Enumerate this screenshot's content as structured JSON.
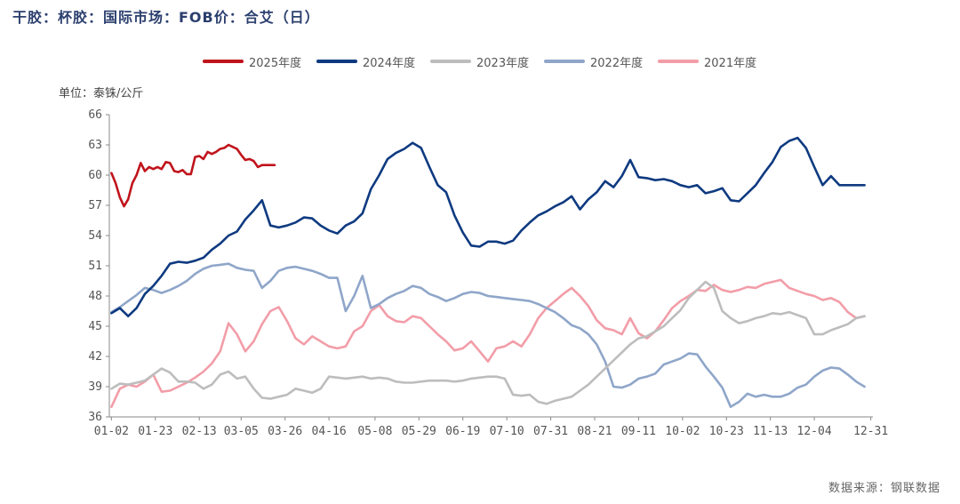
{
  "title": "干胶：杯胶：国际市场：FOB价：合艾（日）",
  "unit_label": "单位：泰铢/公斤",
  "source": "数据来源：钢联数据",
  "chart_data": {
    "type": "line",
    "ylim": [
      36,
      66
    ],
    "yticks": [
      36,
      39,
      42,
      45,
      48,
      51,
      54,
      57,
      60,
      63,
      66
    ],
    "xlim": [
      1,
      366
    ],
    "xticks": [
      {
        "day": 2,
        "label": "01-02"
      },
      {
        "day": 23,
        "label": "01-23"
      },
      {
        "day": 44,
        "label": "02-13"
      },
      {
        "day": 64,
        "label": "03-05"
      },
      {
        "day": 85,
        "label": "03-26"
      },
      {
        "day": 106,
        "label": "04-16"
      },
      {
        "day": 128,
        "label": "05-08"
      },
      {
        "day": 149,
        "label": "05-29"
      },
      {
        "day": 170,
        "label": "06-19"
      },
      {
        "day": 191,
        "label": "07-10"
      },
      {
        "day": 212,
        "label": "07-31"
      },
      {
        "day": 233,
        "label": "08-21"
      },
      {
        "day": 254,
        "label": "09-11"
      },
      {
        "day": 275,
        "label": "10-02"
      },
      {
        "day": 296,
        "label": "10-23"
      },
      {
        "day": 317,
        "label": "11-13"
      },
      {
        "day": 338,
        "label": "12-04"
      },
      {
        "day": 365,
        "label": "12-31"
      }
    ],
    "legend_position": "top",
    "grid": false,
    "series": [
      {
        "name": "2025年度",
        "color": "#c0141c",
        "x": [
          2,
          4,
          6,
          8,
          10,
          12,
          14,
          16,
          18,
          20,
          22,
          24,
          26,
          28,
          30,
          32,
          34,
          36,
          38,
          40,
          42,
          44,
          46,
          48,
          50,
          52,
          54,
          56,
          58,
          60,
          62,
          64,
          66,
          68,
          70,
          72,
          74,
          76,
          78,
          80
        ],
        "y": [
          60.2,
          59.2,
          57.8,
          56.9,
          57.6,
          59.2,
          60.0,
          61.2,
          60.4,
          60.8,
          60.6,
          60.8,
          60.6,
          61.3,
          61.2,
          60.4,
          60.3,
          60.5,
          60.1,
          60.1,
          61.8,
          61.9,
          61.6,
          62.3,
          62.1,
          62.3,
          62.6,
          62.7,
          63.0,
          62.8,
          62.6,
          62.0,
          61.5,
          61.6,
          61.4,
          60.8,
          61.0,
          61.0,
          61.0,
          61.0
        ]
      },
      {
        "name": "2024年度",
        "color": "#0e3a80",
        "x": [
          2,
          6,
          10,
          14,
          18,
          22,
          26,
          30,
          34,
          38,
          42,
          46,
          50,
          54,
          58,
          62,
          66,
          70,
          74,
          78,
          82,
          86,
          90,
          94,
          98,
          102,
          106,
          110,
          114,
          118,
          122,
          126,
          130,
          134,
          138,
          142,
          146,
          150,
          154,
          158,
          162,
          166,
          170,
          174,
          178,
          182,
          186,
          190,
          194,
          198,
          202,
          206,
          210,
          214,
          218,
          222,
          226,
          230,
          234,
          238,
          242,
          246,
          250,
          254,
          258,
          262,
          266,
          270,
          274,
          278,
          282,
          286,
          290,
          294,
          298,
          302,
          306,
          310,
          314,
          318,
          322,
          326,
          330,
          334,
          338,
          342,
          346,
          350,
          354,
          358,
          362
        ],
        "y": [
          46.3,
          46.8,
          46.0,
          46.8,
          48.2,
          49.0,
          50.0,
          51.2,
          51.4,
          51.3,
          51.5,
          51.8,
          52.6,
          53.2,
          54.0,
          54.4,
          55.6,
          56.5,
          57.5,
          55.0,
          54.8,
          55.0,
          55.3,
          55.8,
          55.7,
          55.0,
          54.5,
          54.2,
          55.0,
          55.4,
          56.2,
          58.6,
          60.0,
          61.6,
          62.2,
          62.6,
          63.2,
          62.7,
          60.8,
          59.0,
          58.3,
          56.0,
          54.3,
          53.0,
          52.9,
          53.4,
          53.4,
          53.2,
          53.5,
          54.5,
          55.3,
          56.0,
          56.4,
          56.9,
          57.3,
          57.9,
          56.6,
          57.6,
          58.3,
          59.4,
          58.8,
          59.9,
          61.5,
          59.8,
          59.7,
          59.5,
          59.6,
          59.4,
          59.0,
          58.8,
          59.0,
          58.2,
          58.4,
          58.7,
          57.5,
          57.4,
          58.2,
          59.0,
          60.2,
          61.3,
          62.8,
          63.4,
          63.7,
          62.7,
          60.8,
          59.0,
          59.9,
          59.0,
          59.0,
          59.0,
          59.0
        ]
      },
      {
        "name": "2023年度",
        "color": "#bdbdbd",
        "x": [
          2,
          6,
          10,
          14,
          18,
          22,
          26,
          30,
          34,
          38,
          42,
          46,
          50,
          54,
          58,
          62,
          66,
          70,
          74,
          78,
          82,
          86,
          90,
          94,
          98,
          102,
          106,
          110,
          114,
          118,
          122,
          126,
          130,
          134,
          138,
          142,
          146,
          150,
          154,
          158,
          162,
          166,
          170,
          174,
          178,
          182,
          186,
          190,
          194,
          198,
          202,
          206,
          210,
          214,
          218,
          222,
          226,
          230,
          234,
          238,
          242,
          246,
          250,
          254,
          258,
          262,
          266,
          270,
          274,
          278,
          282,
          286,
          290,
          294,
          298,
          302,
          306,
          310,
          314,
          318,
          322,
          326,
          330,
          334,
          338,
          342,
          346,
          350,
          354,
          358,
          362
        ],
        "y": [
          38.8,
          39.3,
          39.2,
          39.4,
          39.6,
          40.2,
          40.8,
          40.4,
          39.5,
          39.5,
          39.4,
          38.8,
          39.2,
          40.2,
          40.5,
          39.8,
          40.0,
          38.8,
          37.9,
          37.8,
          38.0,
          38.2,
          38.8,
          38.6,
          38.4,
          38.8,
          40.0,
          39.9,
          39.8,
          39.9,
          40.0,
          39.8,
          39.9,
          39.8,
          39.5,
          39.4,
          39.4,
          39.5,
          39.6,
          39.6,
          39.6,
          39.5,
          39.6,
          39.8,
          39.9,
          40.0,
          40.0,
          39.8,
          38.2,
          38.1,
          38.2,
          37.5,
          37.3,
          37.6,
          37.8,
          38.0,
          38.6,
          39.2,
          40.0,
          40.8,
          41.6,
          42.4,
          43.2,
          43.8,
          44.0,
          44.5,
          45.0,
          45.8,
          46.6,
          47.8,
          48.6,
          49.4,
          48.8,
          46.5,
          45.8,
          45.3,
          45.5,
          45.8,
          46.0,
          46.3,
          46.2,
          46.4,
          46.1,
          45.8,
          44.2,
          44.2,
          44.6,
          44.9,
          45.2,
          45.8,
          46.0
        ]
      },
      {
        "name": "2022年度",
        "color": "#8fa6c9",
        "x": [
          2,
          6,
          10,
          14,
          18,
          22,
          26,
          30,
          34,
          38,
          42,
          46,
          50,
          54,
          58,
          62,
          66,
          70,
          74,
          78,
          82,
          86,
          90,
          94,
          98,
          102,
          106,
          110,
          114,
          118,
          122,
          126,
          130,
          134,
          138,
          142,
          146,
          150,
          154,
          158,
          162,
          166,
          170,
          174,
          178,
          182,
          186,
          190,
          194,
          198,
          202,
          206,
          210,
          214,
          218,
          222,
          226,
          230,
          234,
          238,
          242,
          246,
          250,
          254,
          258,
          262,
          266,
          270,
          274,
          278,
          282,
          286,
          290,
          294,
          298,
          302,
          306,
          310,
          314,
          318,
          322,
          326,
          330,
          334,
          338,
          342,
          346,
          350,
          354,
          358,
          362
        ],
        "y": [
          46.4,
          46.9,
          47.5,
          48.1,
          48.8,
          48.6,
          48.3,
          48.6,
          49.0,
          49.5,
          50.2,
          50.7,
          51.0,
          51.1,
          51.2,
          50.8,
          50.6,
          50.5,
          48.8,
          49.5,
          50.5,
          50.8,
          50.9,
          50.7,
          50.5,
          50.2,
          49.8,
          49.8,
          46.5,
          48.0,
          50.0,
          46.8,
          47.2,
          47.8,
          48.2,
          48.5,
          49.0,
          48.8,
          48.2,
          47.9,
          47.5,
          47.8,
          48.2,
          48.4,
          48.3,
          48.0,
          47.9,
          47.8,
          47.7,
          47.6,
          47.5,
          47.2,
          46.8,
          46.4,
          45.8,
          45.1,
          44.8,
          44.2,
          43.2,
          41.5,
          39.0,
          38.9,
          39.2,
          39.8,
          40.0,
          40.3,
          41.2,
          41.5,
          41.8,
          42.3,
          42.2,
          41.0,
          40.0,
          38.9,
          37.0,
          37.5,
          38.3,
          38.0,
          38.2,
          38.0,
          38.0,
          38.3,
          38.9,
          39.2,
          40.0,
          40.6,
          40.9,
          40.8,
          40.2,
          39.5,
          39.0
        ]
      },
      {
        "name": "2021年度",
        "color": "#f29da8",
        "x": [
          2,
          6,
          10,
          14,
          18,
          22,
          26,
          30,
          34,
          38,
          42,
          46,
          50,
          54,
          58,
          62,
          66,
          70,
          74,
          78,
          82,
          86,
          90,
          94,
          98,
          102,
          106,
          110,
          114,
          118,
          122,
          126,
          130,
          134,
          138,
          142,
          146,
          150,
          154,
          158,
          162,
          166,
          170,
          174,
          178,
          182,
          186,
          190,
          194,
          198,
          202,
          206,
          210,
          214,
          218,
          222,
          226,
          230,
          234,
          238,
          242,
          246,
          250,
          254,
          258,
          262,
          266,
          270,
          274,
          278,
          282,
          286,
          290,
          294,
          298,
          302,
          306,
          310,
          314,
          318,
          322,
          326,
          330,
          334,
          338,
          342,
          346,
          350,
          354,
          358,
          362
        ],
        "y": [
          37.0,
          38.8,
          39.2,
          39.0,
          39.5,
          40.2,
          38.5,
          38.6,
          39.0,
          39.4,
          39.9,
          40.5,
          41.3,
          42.5,
          45.3,
          44.2,
          42.5,
          43.5,
          45.2,
          46.5,
          46.9,
          45.5,
          43.8,
          43.2,
          44.0,
          43.5,
          43.0,
          42.8,
          43.0,
          44.5,
          45.0,
          46.5,
          47.1,
          46.0,
          45.5,
          45.4,
          46.0,
          45.8,
          45.0,
          44.2,
          43.5,
          42.6,
          42.8,
          43.5,
          42.5,
          41.5,
          42.8,
          43.0,
          43.5,
          43.0,
          44.2,
          45.8,
          46.8,
          47.5,
          48.2,
          48.8,
          48.0,
          47.0,
          45.6,
          44.8,
          44.6,
          44.2,
          45.8,
          44.3,
          43.8,
          44.5,
          45.6,
          46.8,
          47.5,
          48.0,
          48.6,
          48.5,
          49.1,
          48.6,
          48.4,
          48.6,
          48.9,
          48.8,
          49.2,
          49.4,
          49.6,
          48.8,
          48.5,
          48.2,
          48.0,
          47.6,
          47.8,
          47.4,
          46.4,
          45.8,
          46.0
        ]
      }
    ]
  }
}
